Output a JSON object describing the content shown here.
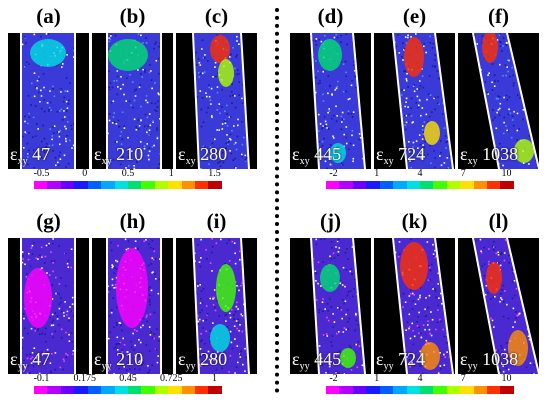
{
  "panels": [
    {
      "label": "(a)",
      "strain": "xy",
      "value": "47"
    },
    {
      "label": "(b)",
      "strain": "xy",
      "value": "210"
    },
    {
      "label": "(c)",
      "strain": "xy",
      "value": "280"
    },
    {
      "label": "(d)",
      "strain": "xy",
      "value": "445"
    },
    {
      "label": "(e)",
      "strain": "xy",
      "value": "724"
    },
    {
      "label": "(f)",
      "strain": "xy",
      "value": "1038"
    },
    {
      "label": "(g)",
      "strain": "yy",
      "value": "47"
    },
    {
      "label": "(h)",
      "strain": "yy",
      "value": "210"
    },
    {
      "label": "(i)",
      "strain": "yy",
      "value": "280"
    },
    {
      "label": "(j)",
      "strain": "yy",
      "value": "445"
    },
    {
      "label": "(k)",
      "strain": "yy",
      "value": "724"
    },
    {
      "label": "(l)",
      "strain": "yy",
      "value": "1038"
    }
  ],
  "epsilon_symbol": "ε",
  "colorbars": [
    {
      "ticks": [
        "-0.5",
        "0",
        "0.5",
        "1",
        "1.5"
      ]
    },
    {
      "ticks": [
        "-2",
        "1",
        "4",
        "7",
        "10"
      ]
    },
    {
      "ticks": [
        "-0.1",
        "0.175",
        "0.45",
        "0.725",
        "1"
      ]
    },
    {
      "ticks": [
        "-2",
        "1",
        "4",
        "7",
        "10"
      ]
    }
  ],
  "colormap": [
    "#ff00ff",
    "#b300ff",
    "#6a00ff",
    "#1a1aff",
    "#0060ff",
    "#00a8ff",
    "#00e0e0",
    "#00e070",
    "#40ff00",
    "#b0ff00",
    "#ffe000",
    "#ff9000",
    "#ff3000",
    "#c00000"
  ]
}
